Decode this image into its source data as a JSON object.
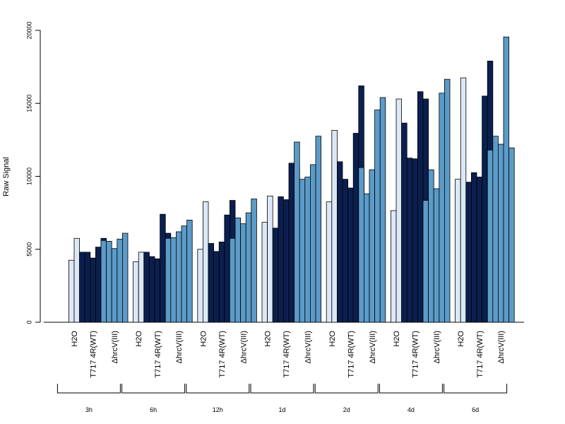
{
  "chart_data": {
    "type": "bar",
    "title": "",
    "ylabel": "Raw Signal",
    "xlabel": "",
    "ylim": [
      0,
      20000
    ],
    "yticks": [
      0,
      5000,
      10000,
      15000,
      20000
    ],
    "grid": false,
    "legend": "none",
    "treatments": [
      {
        "label": "H2O",
        "color": "#dce8f6"
      },
      {
        "label": "T717 4R(WT)",
        "color": "#0b1f4f"
      },
      {
        "label": "ΔhrcV(III)",
        "color": "#5b9bc8"
      }
    ],
    "groups": [
      {
        "label": "3h",
        "values": [
          [
            4250,
            5750
          ],
          [
            4800,
            4800,
            4400,
            5150,
            5750
          ],
          [
            5600,
            5550,
            5050,
            5700,
            6100
          ]
        ]
      },
      {
        "label": "6h",
        "values": [
          [
            4150,
            4800
          ],
          [
            4800,
            4500,
            4350,
            7400,
            6100
          ],
          [
            5750,
            5800,
            6200,
            6600,
            7000
          ]
        ]
      },
      {
        "label": "12h",
        "values": [
          [
            5000,
            8250
          ],
          [
            5400,
            4850,
            5500,
            7350,
            8350
          ],
          [
            5750,
            7150,
            6750,
            7500,
            8450
          ]
        ]
      },
      {
        "label": "1d",
        "values": [
          [
            6850,
            8650
          ],
          [
            6450,
            8600,
            8400,
            10900,
            10700
          ],
          [
            12350,
            9800,
            9950,
            10800,
            12750
          ]
        ]
      },
      {
        "label": "2d",
        "values": [
          [
            8250,
            13150
          ],
          [
            11000,
            9800,
            9200,
            12950,
            16200
          ],
          [
            10600,
            8800,
            10450,
            14550,
            15400
          ]
        ]
      },
      {
        "label": "4d",
        "values": [
          [
            7650,
            15300
          ],
          [
            13650,
            11250,
            11200,
            15800,
            15300
          ],
          [
            8350,
            10450,
            9150,
            15700,
            16650
          ]
        ]
      },
      {
        "label": "6d",
        "values": [
          [
            9800,
            16750
          ],
          [
            9600,
            10250,
            9950,
            15500,
            17900
          ],
          [
            11800,
            12750,
            12200,
            19550,
            11950
          ]
        ]
      }
    ]
  }
}
